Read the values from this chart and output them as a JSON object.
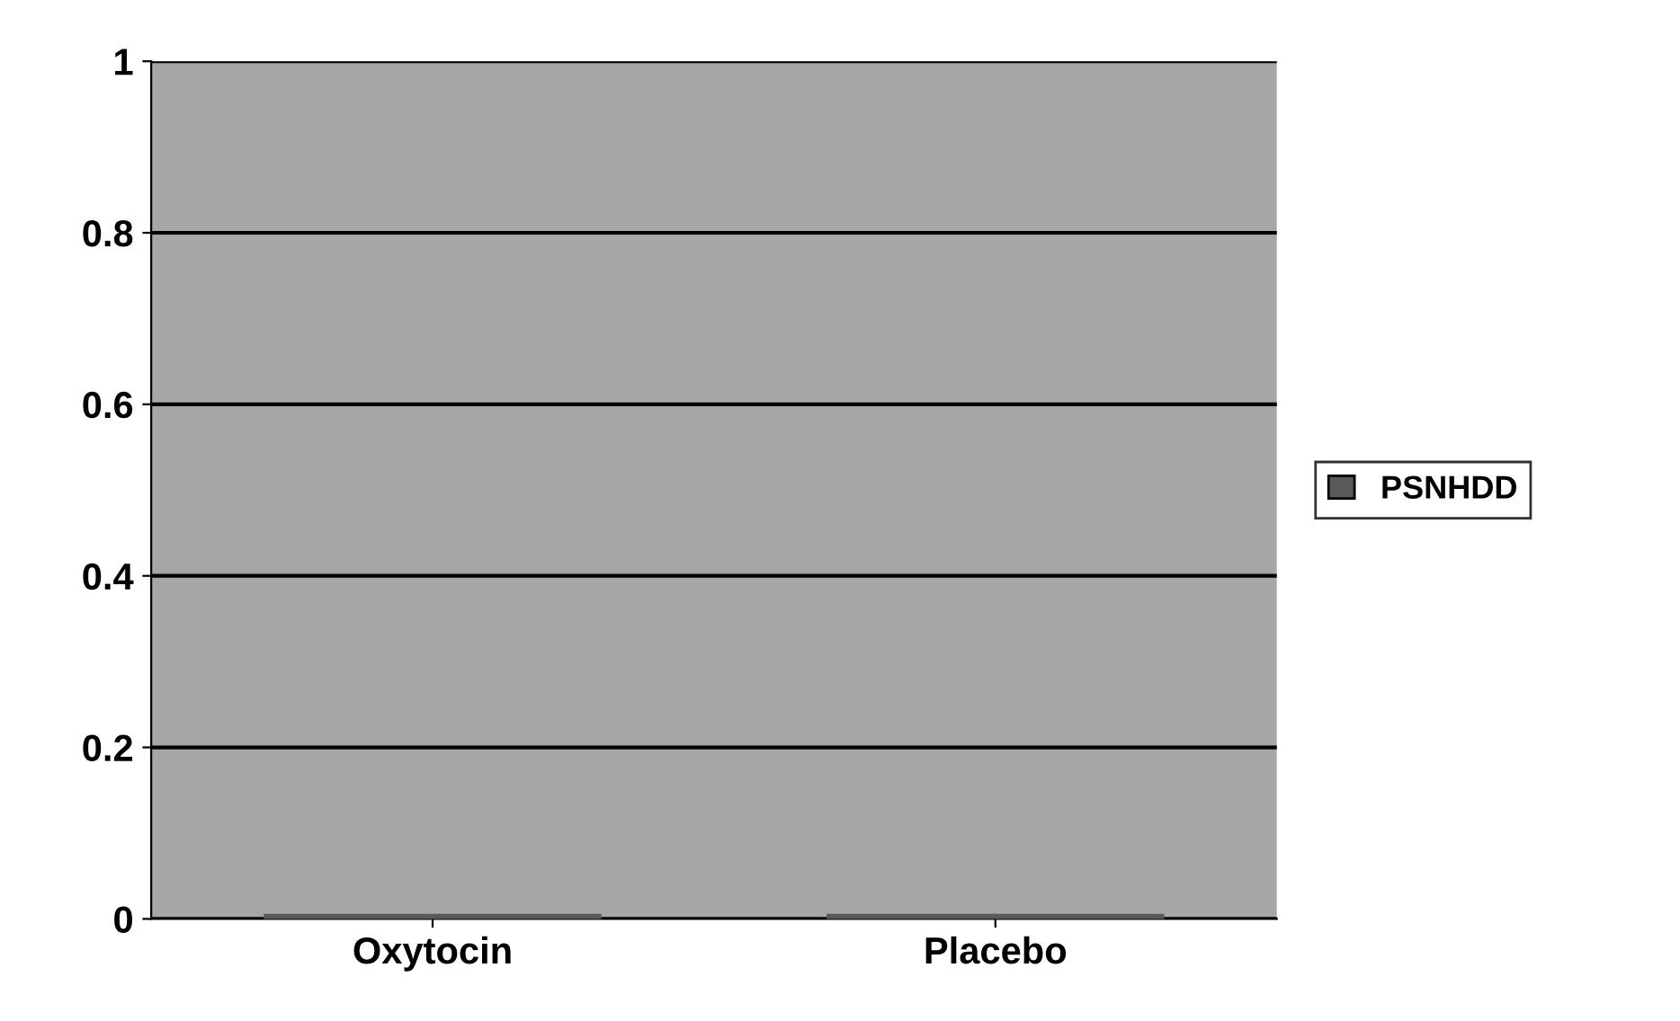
{
  "chart_data": {
    "type": "bar",
    "categories": [
      "Oxytocin",
      "Placebo"
    ],
    "series": [
      {
        "name": "PSNHDD",
        "color": "#5a5a5a",
        "values": [
          0,
          0
        ]
      }
    ],
    "ylim": [
      0,
      1
    ],
    "yticks": [
      0,
      0.2,
      0.4,
      0.6,
      0.8,
      1
    ],
    "grid": "y",
    "legend": "right"
  }
}
